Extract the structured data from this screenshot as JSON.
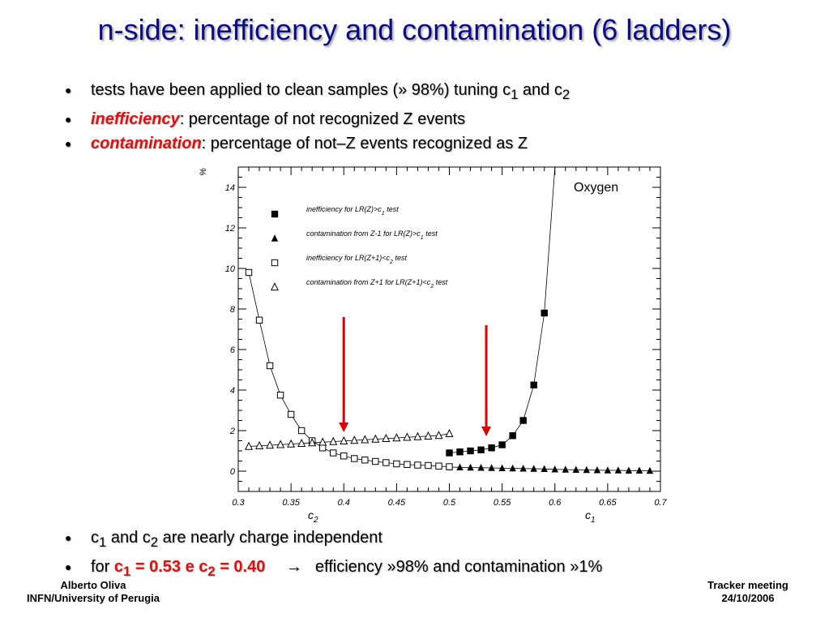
{
  "slide": {
    "title": "n-side: inefficiency and contamination (6 ladders)",
    "bullet_dot": "●",
    "top_bullets": [
      {
        "pre": "tests have been applied to clean samples (» 98%) tuning c",
        "sub1": "1",
        "mid": " and c",
        "sub2": "2"
      },
      {
        "em": "inefficiency",
        "rest": ": percentage of not recognized Z events"
      },
      {
        "em": "contamination",
        "rest": ": percentage of not–Z events recognized as Z"
      }
    ],
    "bottom_bullets": [
      {
        "c": "c",
        "s1": "1",
        "and": " and c",
        "s2": "2",
        "rest": " are nearly charge independent"
      },
      {
        "for": "for ",
        "c1": "c",
        "s1": "1",
        "v1": " = 0.53 e c",
        "s2": "2",
        "v2": " = 0.40",
        "arrow": "→",
        "rest": "efficiency »98% and contamination »1%"
      }
    ],
    "footer_left": {
      "name": "Alberto Oliva",
      "affiliation": "INFN/University of Perugia"
    },
    "footer_right": {
      "event": "Tracker meeting",
      "date": "24/10/2006"
    }
  },
  "chart_data": {
    "type": "scatter",
    "annotation": "Oxygen",
    "ylabel": "%",
    "xaxis_labels": [
      {
        "text": "c",
        "sub": "2"
      },
      {
        "text": "c",
        "sub": "1"
      }
    ],
    "xlim": [
      0.3,
      0.7
    ],
    "ylim": [
      -1,
      15
    ],
    "xticks": [
      "0.3",
      "0.35",
      "0.4",
      "0.45",
      "0.5",
      "0.55",
      "0.6",
      "0.65",
      "0.7"
    ],
    "yticks": [
      "0",
      "2",
      "4",
      "6",
      "8",
      "10",
      "12",
      "14"
    ],
    "legend": [
      {
        "marker": "filled-square",
        "text": "inefficiency for LR(Z)>c",
        "sub": "1",
        "tail": " test"
      },
      {
        "marker": "filled-triangle",
        "text": "contamination from Z-1 for LR(Z)>c",
        "sub": "1",
        "tail": " test"
      },
      {
        "marker": "open-square",
        "text": "inefficiency for LR(Z+1)<c",
        "sub": "2",
        "tail": " test"
      },
      {
        "marker": "open-triangle",
        "text": "contamination from Z+1 for LR(Z+1)<c",
        "sub": "2",
        "tail": " test"
      }
    ],
    "series": [
      {
        "name": "inefficiency for LR(Z)>c1 test",
        "marker": "filled-square",
        "x": [
          0.5,
          0.51,
          0.52,
          0.53,
          0.54,
          0.55,
          0.56,
          0.57,
          0.58,
          0.59
        ],
        "y": [
          0.9,
          0.95,
          1.0,
          1.05,
          1.15,
          1.3,
          1.75,
          2.5,
          4.25,
          7.8
        ]
      },
      {
        "name": "contamination from Z-1 for LR(Z)>c1 test",
        "marker": "filled-triangle",
        "x": [
          0.5,
          0.51,
          0.52,
          0.53,
          0.54,
          0.55,
          0.56,
          0.57,
          0.58,
          0.59,
          0.6,
          0.61,
          0.62,
          0.63,
          0.64,
          0.65,
          0.66,
          0.67,
          0.68,
          0.69
        ],
        "y": [
          0.2,
          0.19,
          0.18,
          0.17,
          0.16,
          0.15,
          0.14,
          0.13,
          0.12,
          0.11,
          0.09,
          0.08,
          0.07,
          0.06,
          0.05,
          0.04,
          0.04,
          0.03,
          0.03,
          0.02
        ]
      },
      {
        "name": "inefficiency for LR(Z+1)<c2 test",
        "marker": "open-square",
        "x": [
          0.31,
          0.32,
          0.33,
          0.34,
          0.35,
          0.36,
          0.37,
          0.38,
          0.39,
          0.4,
          0.41,
          0.42,
          0.43,
          0.44,
          0.45,
          0.46,
          0.47,
          0.48,
          0.49,
          0.5
        ],
        "y": [
          9.8,
          7.45,
          5.2,
          3.75,
          2.8,
          2.0,
          1.5,
          1.15,
          0.9,
          0.75,
          0.62,
          0.55,
          0.48,
          0.42,
          0.36,
          0.33,
          0.3,
          0.28,
          0.25,
          0.22
        ]
      },
      {
        "name": "contamination from Z+1 for LR(Z+1)<c2 test",
        "marker": "open-triangle",
        "x": [
          0.31,
          0.32,
          0.33,
          0.34,
          0.35,
          0.36,
          0.37,
          0.38,
          0.39,
          0.4,
          0.41,
          0.42,
          0.43,
          0.44,
          0.45,
          0.46,
          0.47,
          0.48,
          0.49,
          0.5
        ],
        "y": [
          1.22,
          1.25,
          1.28,
          1.31,
          1.34,
          1.37,
          1.4,
          1.43,
          1.46,
          1.49,
          1.52,
          1.55,
          1.58,
          1.61,
          1.64,
          1.67,
          1.7,
          1.73,
          1.76,
          1.85
        ]
      }
    ],
    "arrows": [
      {
        "x": 0.4,
        "y_from": 7.6,
        "y_to": 2.0,
        "color": "#e00000"
      },
      {
        "x": 0.535,
        "y_from": 7.2,
        "y_to": 1.8,
        "color": "#e00000"
      }
    ],
    "steep_curve_end": {
      "x": 0.6,
      "y": 15
    }
  }
}
